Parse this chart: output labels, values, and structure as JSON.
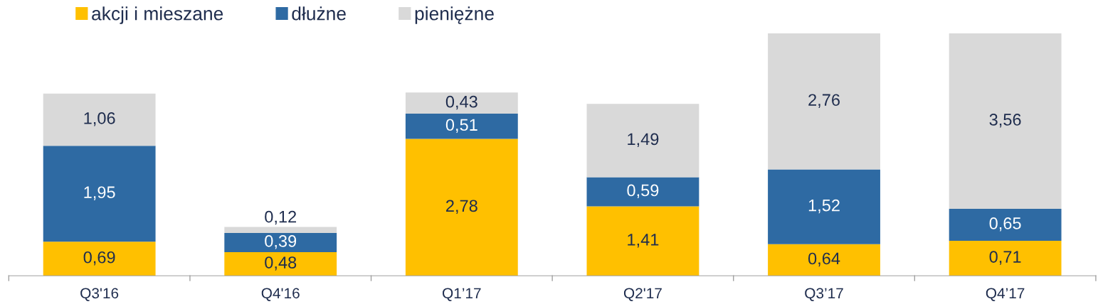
{
  "chart_data": {
    "type": "bar",
    "stacked": true,
    "legend": "top left",
    "grid": false,
    "tick_labels": "x",
    "categories": [
      "Q3'16",
      "Q4'16",
      "Q1’17",
      "Q2'17",
      "Q3’17",
      "Q4’17"
    ],
    "series": [
      {
        "name": "akcji i mieszane",
        "color": "#ffc000",
        "values": [
          0.69,
          0.48,
          2.78,
          1.41,
          0.64,
          0.71
        ],
        "value_labels": [
          "0,69",
          "0,48",
          "2,78",
          "1,41",
          "0,64",
          "0,71"
        ]
      },
      {
        "name": "dłużne",
        "color": "#2e6aa3",
        "values": [
          1.95,
          0.39,
          0.51,
          0.59,
          1.52,
          0.65
        ],
        "value_labels": [
          "1,95",
          "0,39",
          "0,51",
          "0,59",
          "1,52",
          "0,65"
        ]
      },
      {
        "name": "pieniężne",
        "color": "#d9d9d9",
        "values": [
          1.06,
          0.12,
          0.43,
          1.49,
          2.76,
          3.56
        ],
        "value_labels": [
          "1,06",
          "0,12",
          "0,43",
          "1,49",
          "2,76",
          "3,56"
        ]
      }
    ]
  }
}
